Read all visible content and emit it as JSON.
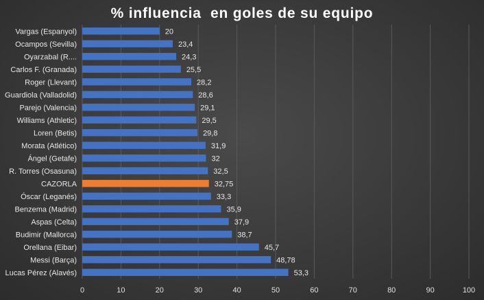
{
  "chart_data": {
    "type": "bar",
    "orientation": "horizontal",
    "title": "% influencia  en goles de su equipo",
    "categories": [
      "Vargas (Espanyol)",
      "Ocampos (Sevilla)",
      "Oyarzabal (R....",
      "Carlos F. (Granada)",
      "Roger (Llevant)",
      "Guardiola (Valladolid)",
      "Parejo (Valencia)",
      "Williams (Athletic)",
      "Loren (Betis)",
      "Morata (Atlético)",
      "Ángel (Getafe)",
      "R. Torres (Osasuna)",
      "CAZORLA",
      "Óscar (Leganés)",
      "Benzema (Madrid)",
      "Aspas (Celta)",
      "Budimir (Mallorca)",
      "Orellana (Eibar)",
      "Messi (Barça)",
      "Lucas Pérez (Alavés)"
    ],
    "values": [
      20,
      23.4,
      24.3,
      25.5,
      28.2,
      28.6,
      29.1,
      29.5,
      29.8,
      31.9,
      32,
      32.5,
      32.75,
      33.3,
      35.9,
      37.9,
      38.7,
      45.7,
      48.78,
      53.3
    ],
    "value_labels": [
      "20",
      "23,4",
      "24,3",
      "25,5",
      "28,2",
      "28,6",
      "29,1",
      "29,5",
      "29,8",
      "31,9",
      "32",
      "32,5",
      "32,75",
      "33,3",
      "35,9",
      "37,9",
      "38,7",
      "45,7",
      "48,78",
      "53,3"
    ],
    "highlight_category": "CAZORLA",
    "xlim": [
      0,
      100
    ],
    "xticks": [
      "0",
      "10",
      "20",
      "30",
      "40",
      "50",
      "60",
      "70",
      "80",
      "90",
      "100"
    ],
    "xlabel": "",
    "ylabel": "",
    "grid": "vertical",
    "legend": "none",
    "colors": {
      "bar": "#4472c4",
      "highlight": "#ed7d31",
      "grid": "#5a5a5a",
      "text": "#e8e8e8",
      "title": "#ffffff"
    }
  }
}
